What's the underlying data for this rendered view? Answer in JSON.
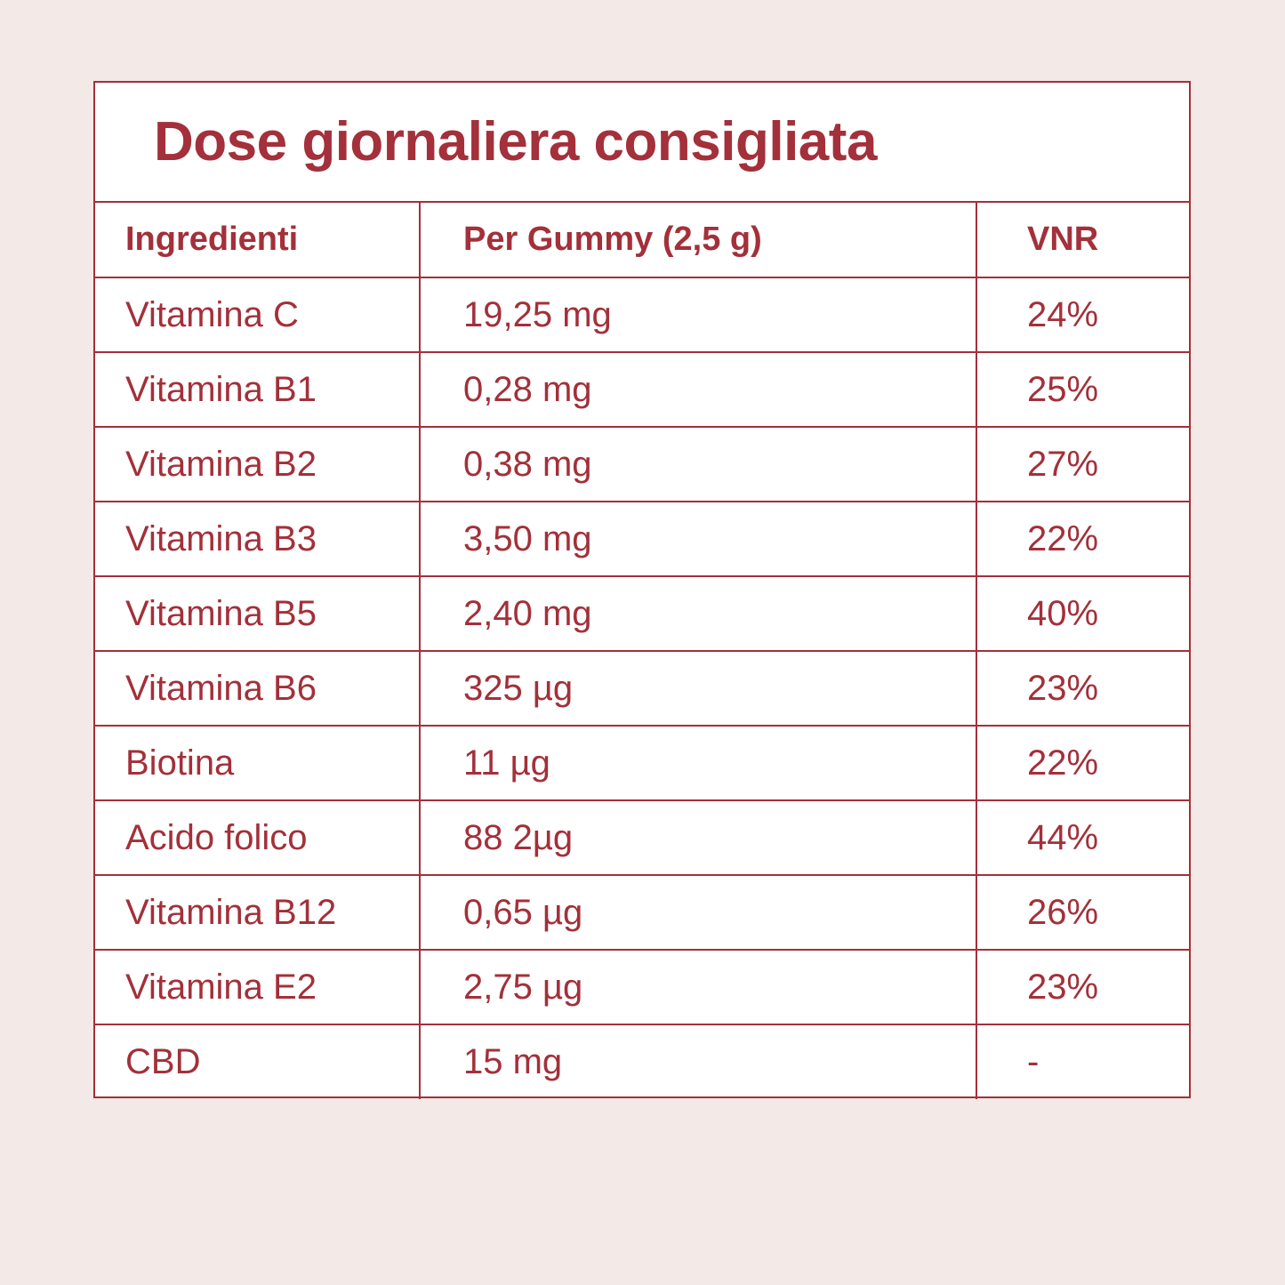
{
  "title": "Dose giornaliera consigliata",
  "headers": {
    "ingredient": "Ingredienti",
    "per_gummy": "Per Gummy (2,5 g)",
    "vnr": "VNR"
  },
  "rows": [
    {
      "ingredient": "Vitamina C",
      "amount": "19,25 mg",
      "vnr": "24%"
    },
    {
      "ingredient": "Vitamina B1",
      "amount": "0,28 mg",
      "vnr": "25%"
    },
    {
      "ingredient": "Vitamina B2",
      "amount": "0,38 mg",
      "vnr": "27%"
    },
    {
      "ingredient": "Vitamina B3",
      "amount": "3,50 mg",
      "vnr": "22%"
    },
    {
      "ingredient": "Vitamina B5",
      "amount": "2,40 mg",
      "vnr": "40%"
    },
    {
      "ingredient": "Vitamina B6",
      "amount": "325 µg",
      "vnr": "23%"
    },
    {
      "ingredient": "Biotina",
      "amount": "11 µg",
      "vnr": "22%"
    },
    {
      "ingredient": "Acido folico",
      "amount": "88 2µg",
      "vnr": "44%"
    },
    {
      "ingredient": "Vitamina B12",
      "amount": "0,65 µg",
      "vnr": "26%"
    },
    {
      "ingredient": "Vitamina E2",
      "amount": "2,75 µg",
      "vnr": "23%"
    },
    {
      "ingredient": "CBD",
      "amount": "15 mg",
      "vnr": "-"
    }
  ],
  "colors": {
    "accent": "#a3303a",
    "background": "#f3e9e6",
    "panel": "#ffffff"
  }
}
